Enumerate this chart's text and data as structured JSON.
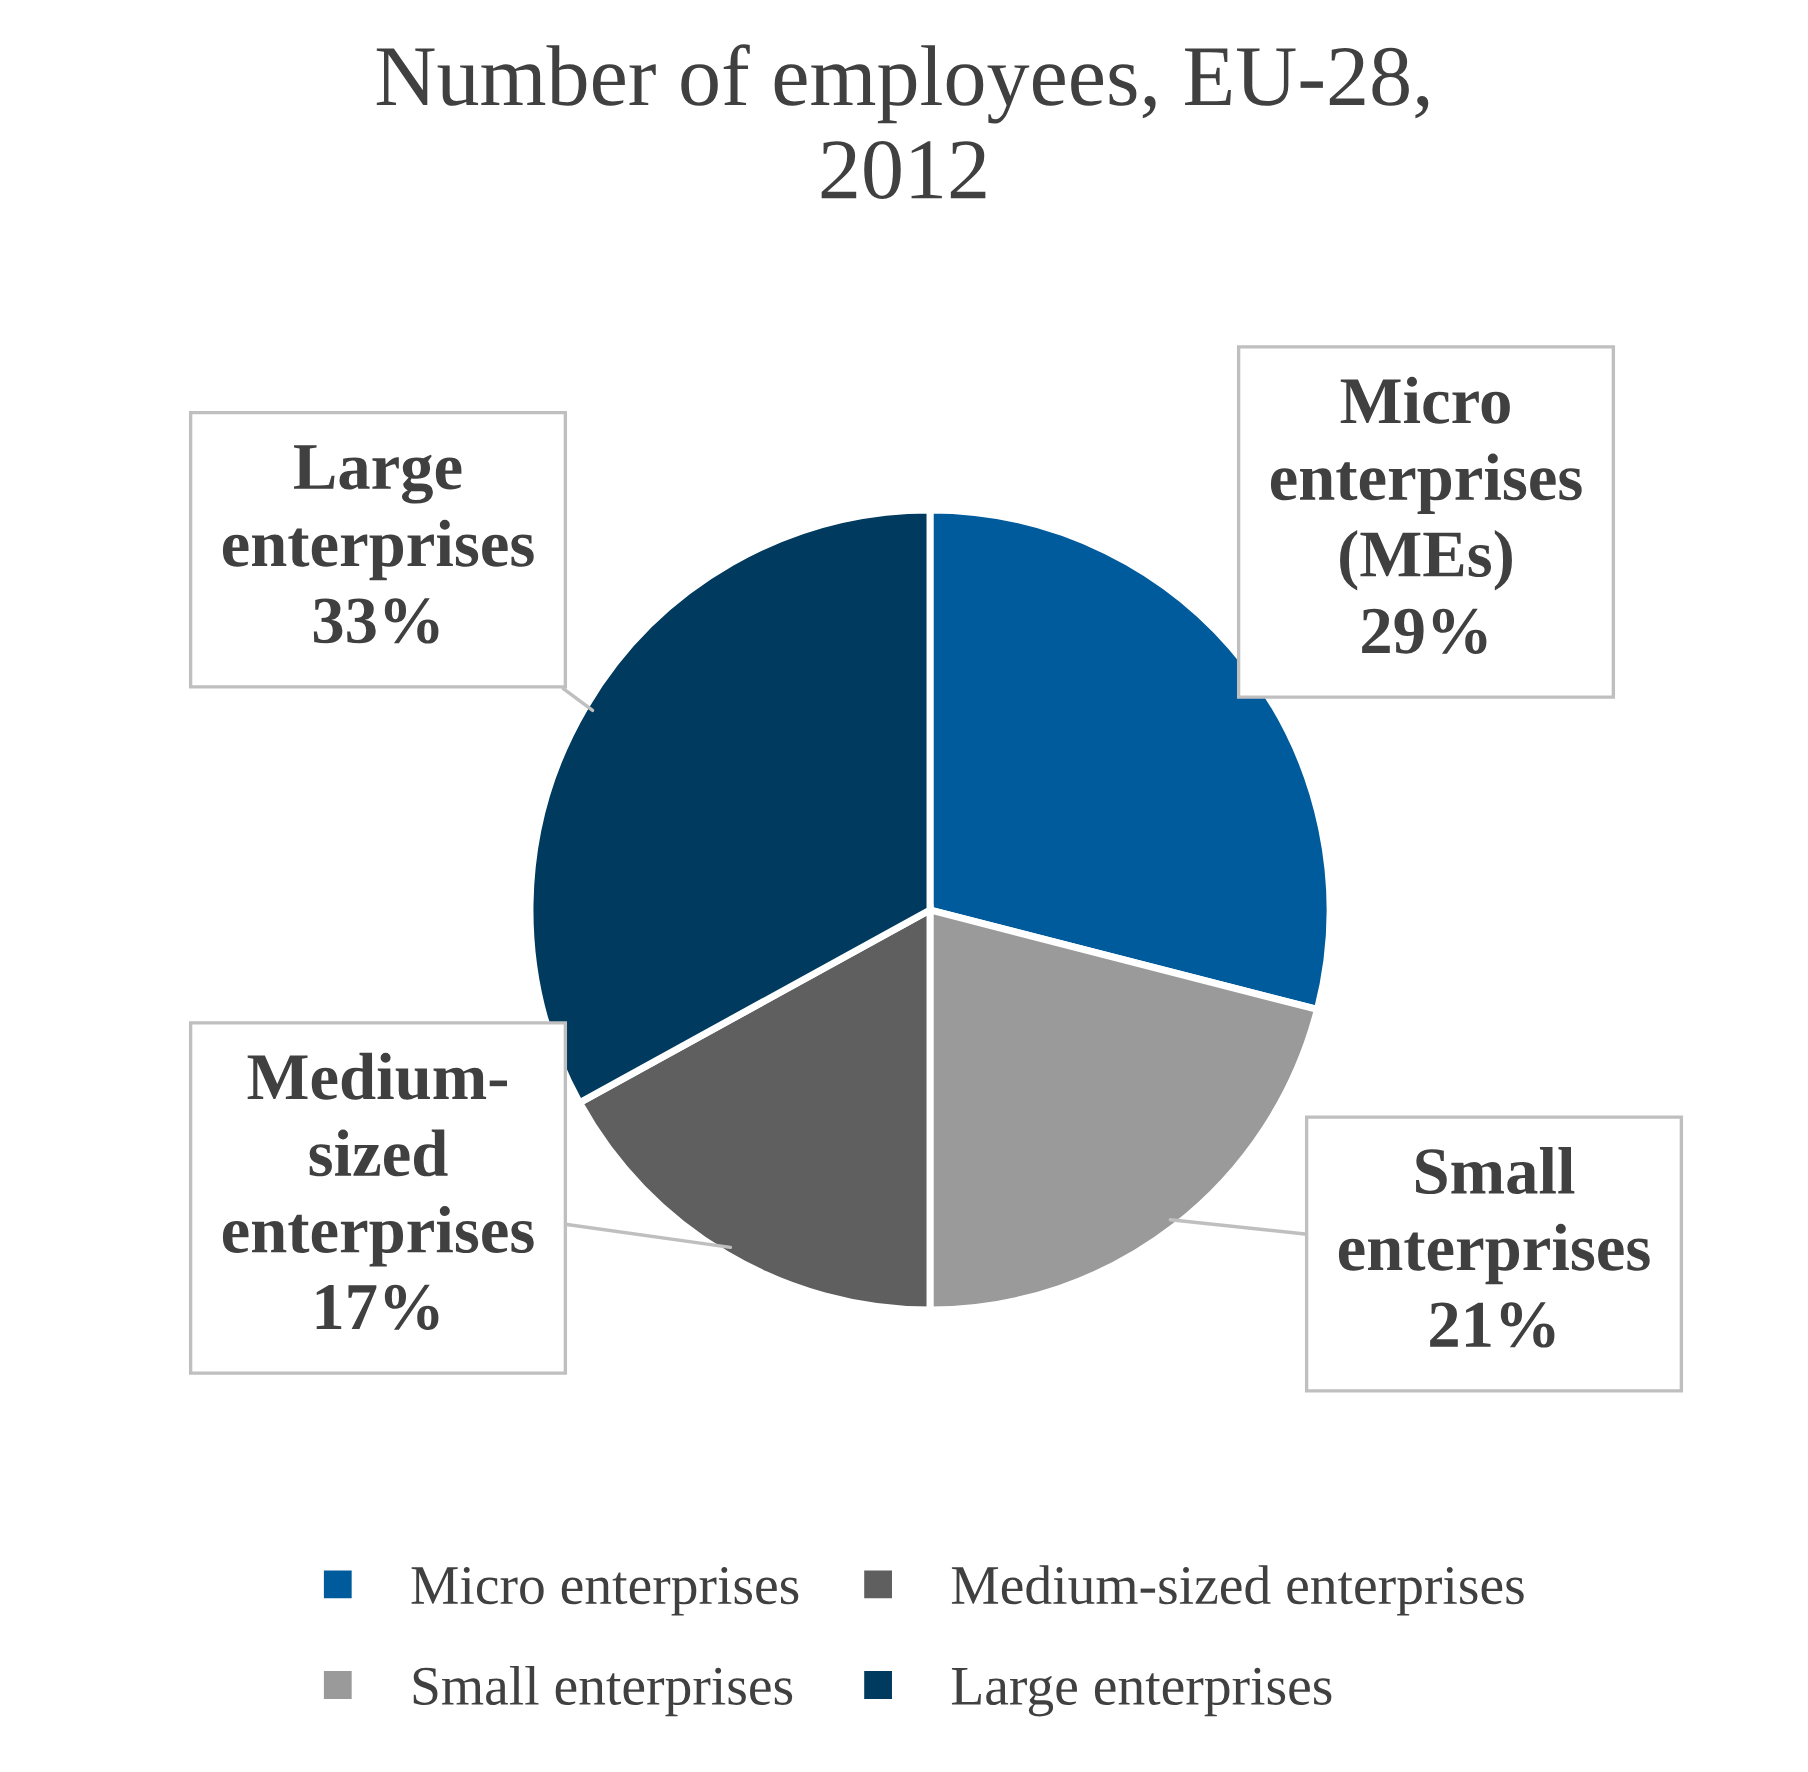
{
  "chart_data": {
    "type": "pie",
    "title": "Number of employees, EU-28,\n2012",
    "categories": [
      "Micro enterprises",
      "Small enterprises",
      "Medium-sized enterprises",
      "Large enterprises"
    ],
    "values": [
      29,
      21,
      17,
      33
    ],
    "colors": [
      "#005b9c",
      "#9a9a9a",
      "#5f5f5f",
      "#003a5e"
    ],
    "value_labels": [
      "Micro\nenterprises\n(MEs)\n29%",
      "Small\nenterprises\n21%",
      "Medium-\nsized\nenterprises\n17%",
      "Large\nenterprises\n33%"
    ],
    "legend": "bottom"
  }
}
